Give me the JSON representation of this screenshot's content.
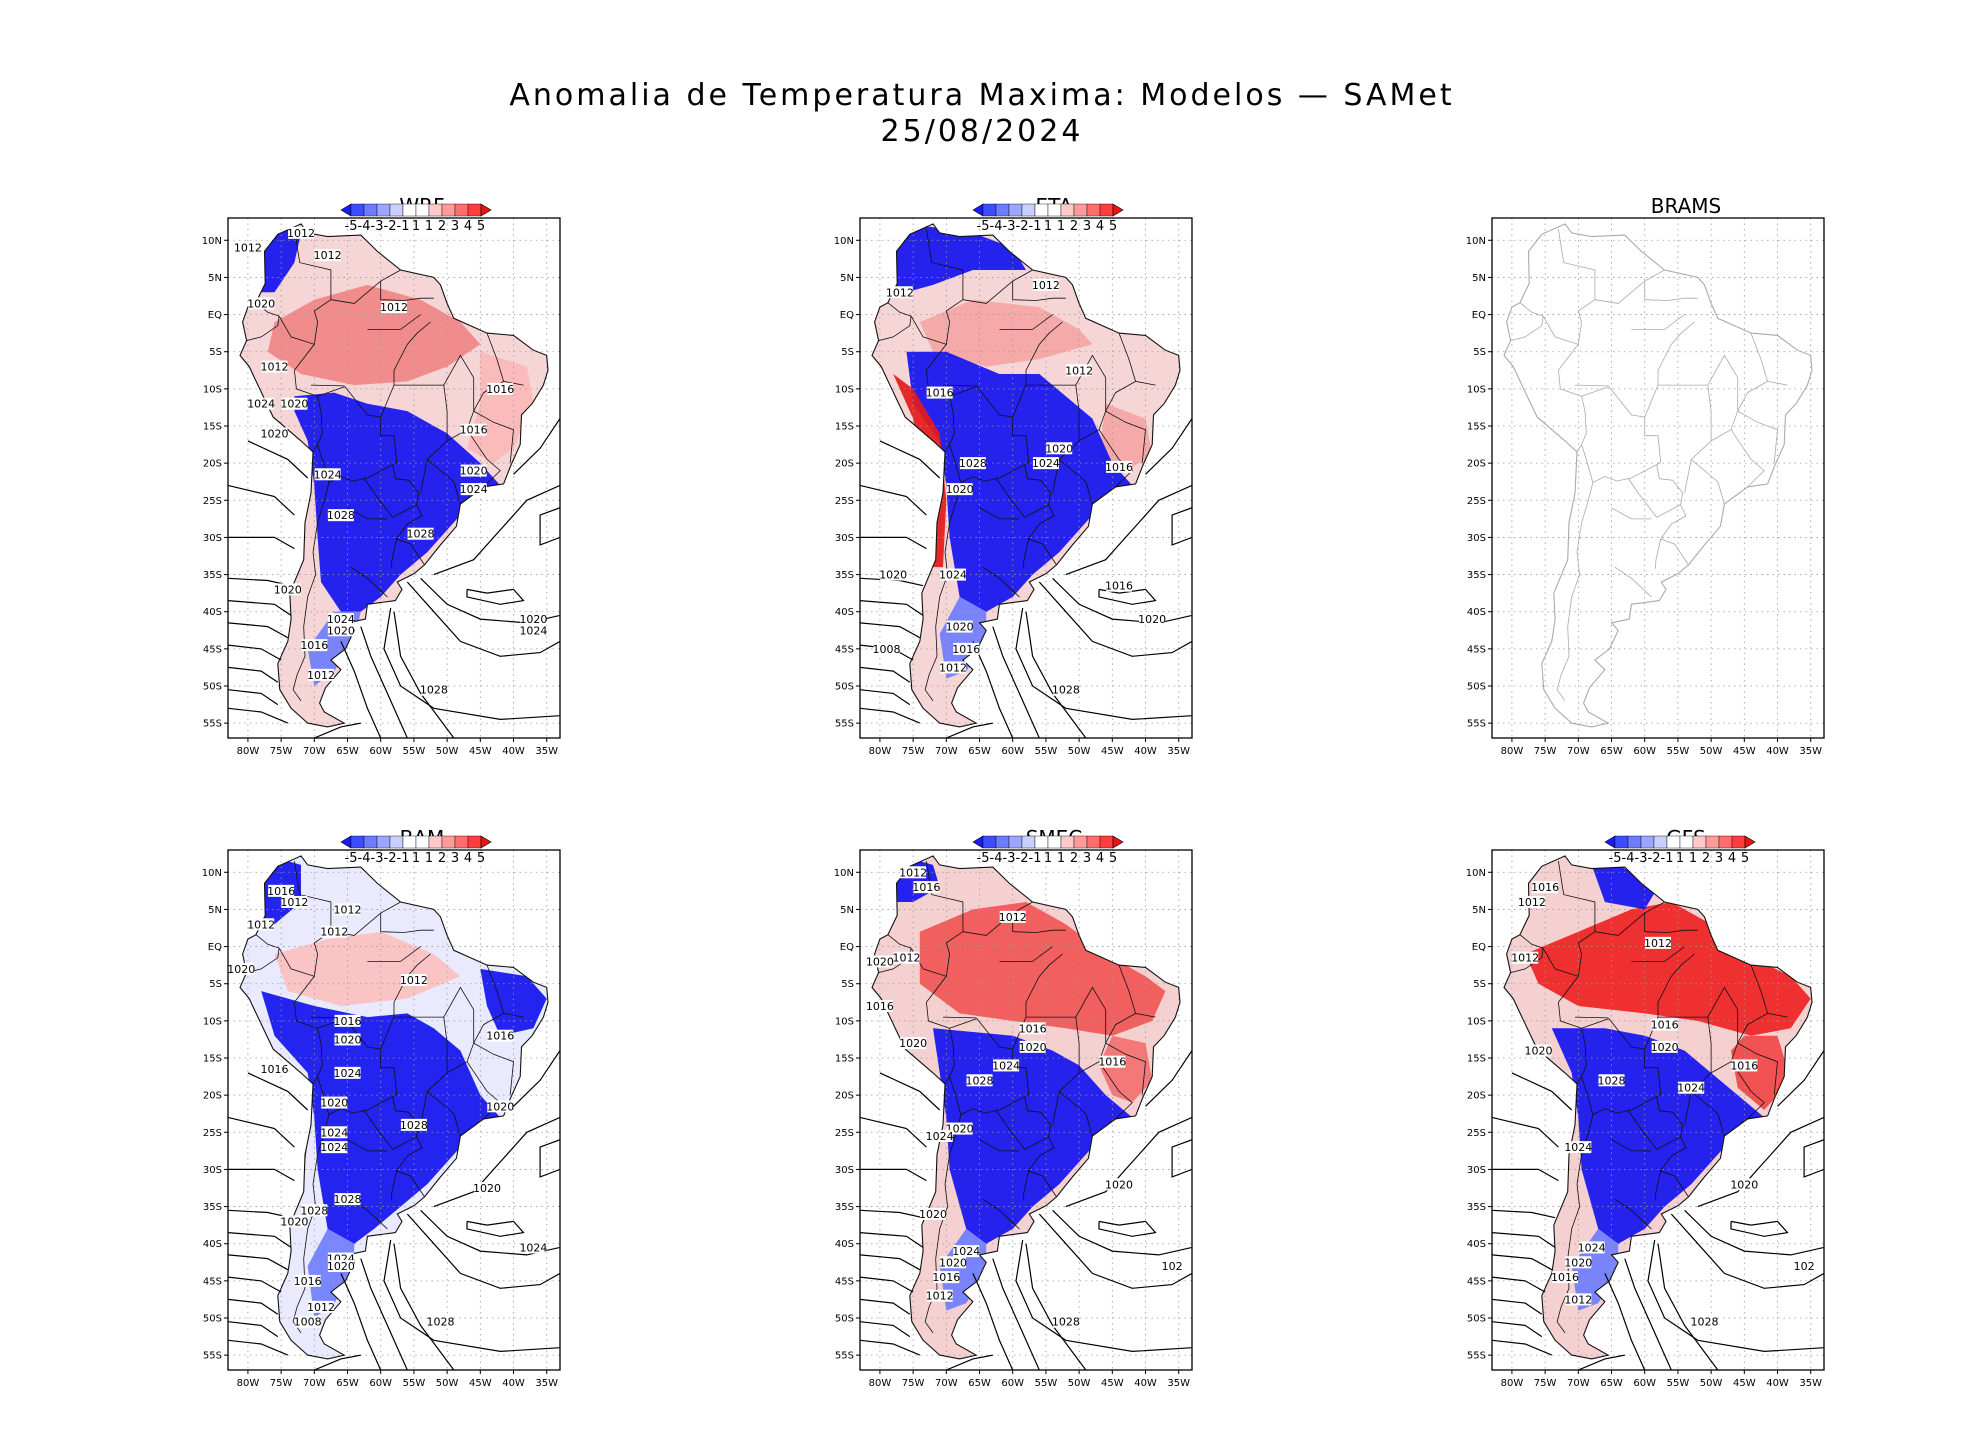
{
  "figure": {
    "title": "Anomalia de Temperatura Maxima: Modelos — SAMet",
    "date": "25/08/2024"
  },
  "axes": {
    "lat_labels": [
      "10N",
      "5N",
      "EQ",
      "5S",
      "10S",
      "15S",
      "20S",
      "25S",
      "30S",
      "35S",
      "40S",
      "45S",
      "50S",
      "55S"
    ],
    "lon_labels": [
      "80W",
      "75W",
      "70W",
      "65W",
      "60W",
      "55W",
      "50W",
      "45W",
      "40W",
      "35W"
    ]
  },
  "colorbar": {
    "labels": [
      "-5",
      "-4",
      "-3",
      "-2",
      "-1",
      "1",
      "1",
      "2",
      "3",
      "4",
      "5"
    ],
    "colors": [
      "#1a1aff",
      "#3d4dff",
      "#6e7dff",
      "#9aa6ff",
      "#c9d0ff",
      "#ffffff",
      "#ffffff",
      "#ffc9c9",
      "#ff9a9a",
      "#ff6e6e",
      "#ff3d3d",
      "#ee1111"
    ]
  },
  "panels": [
    {
      "model": "WRF",
      "has_data": true,
      "isobars": [
        {
          "label": "1012",
          "lon": -72,
          "lat": 11
        },
        {
          "label": "1012",
          "lon": -68,
          "lat": 8
        },
        {
          "label": "1012",
          "lon": -80,
          "lat": 9
        },
        {
          "label": "1020",
          "lon": -78,
          "lat": 1.5
        },
        {
          "label": "1012",
          "lon": -58,
          "lat": 1
        },
        {
          "label": "1012",
          "lon": -76,
          "lat": -7
        },
        {
          "label": "1024",
          "lon": -78,
          "lat": -12
        },
        {
          "label": "1020",
          "lon": -73,
          "lat": -12
        },
        {
          "label": "1020",
          "lon": -76,
          "lat": -16
        },
        {
          "label": "1016",
          "lon": -42,
          "lat": -10
        },
        {
          "label": "1016",
          "lon": -46,
          "lat": -15.5
        },
        {
          "label": "1024",
          "lon": -68,
          "lat": -21.5
        },
        {
          "label": "1020",
          "lon": -46,
          "lat": -21
        },
        {
          "label": "1024",
          "lon": -46,
          "lat": -23.5
        },
        {
          "label": "1028",
          "lon": -66,
          "lat": -27
        },
        {
          "label": "1028",
          "lon": -54,
          "lat": -29.5
        },
        {
          "label": "1020",
          "lon": -74,
          "lat": -37
        },
        {
          "label": "1024",
          "lon": -66,
          "lat": -41
        },
        {
          "label": "1020",
          "lon": -66,
          "lat": -42.5
        },
        {
          "label": "1016",
          "lon": -70,
          "lat": -44.5
        },
        {
          "label": "1012",
          "lon": -69,
          "lat": -48.5
        },
        {
          "label": "1020",
          "lon": -37,
          "lat": -41
        },
        {
          "label": "1024",
          "lon": -37,
          "lat": -42.5
        },
        {
          "label": "1028",
          "lon": -52,
          "lat": -50.5
        }
      ]
    },
    {
      "model": "ETA",
      "has_data": true,
      "isobars": [
        {
          "label": "1012",
          "lon": -77,
          "lat": 3
        },
        {
          "label": "1012",
          "lon": -55,
          "lat": 4
        },
        {
          "label": "1012",
          "lon": -50,
          "lat": -7.5
        },
        {
          "label": "1016",
          "lon": -71,
          "lat": -10.5
        },
        {
          "label": "1020",
          "lon": -53,
          "lat": -18
        },
        {
          "label": "1024",
          "lon": -55,
          "lat": -20
        },
        {
          "label": "1028",
          "lon": -66,
          "lat": -20
        },
        {
          "label": "1016",
          "lon": -44,
          "lat": -20.5
        },
        {
          "label": "1020",
          "lon": -68,
          "lat": -23.5
        },
        {
          "label": "1020",
          "lon": -78,
          "lat": -35
        },
        {
          "label": "1024",
          "lon": -69,
          "lat": -35
        },
        {
          "label": "1016",
          "lon": -44,
          "lat": -36.5
        },
        {
          "label": "1020",
          "lon": -39,
          "lat": -41
        },
        {
          "label": "1020",
          "lon": -68,
          "lat": -42
        },
        {
          "label": "1016",
          "lon": -67,
          "lat": -45
        },
        {
          "label": "1008",
          "lon": -79,
          "lat": -45
        },
        {
          "label": "1012",
          "lon": -69,
          "lat": -47.5
        },
        {
          "label": "1028",
          "lon": -52,
          "lat": -50.5
        }
      ]
    },
    {
      "model": "BRAMS",
      "has_data": false,
      "isobars": []
    },
    {
      "model": "BAM",
      "has_data": true,
      "isobars": [
        {
          "label": "1016",
          "lon": -75,
          "lat": 7.5
        },
        {
          "label": "1012",
          "lon": -73,
          "lat": 6
        },
        {
          "label": "1012",
          "lon": -65,
          "lat": 5
        },
        {
          "label": "1012",
          "lon": -78,
          "lat": 3
        },
        {
          "label": "1012",
          "lon": -67,
          "lat": 2
        },
        {
          "label": "1020",
          "lon": -81,
          "lat": -3
        },
        {
          "label": "1012",
          "lon": -55,
          "lat": -4.5
        },
        {
          "label": "1016",
          "lon": -65,
          "lat": -10
        },
        {
          "label": "1020",
          "lon": -65,
          "lat": -12.5
        },
        {
          "label": "1016",
          "lon": -42,
          "lat": -12
        },
        {
          "label": "1016",
          "lon": -76,
          "lat": -16.5
        },
        {
          "label": "1024",
          "lon": -65,
          "lat": -17
        },
        {
          "label": "1020",
          "lon": -67,
          "lat": -21
        },
        {
          "label": "1020",
          "lon": -42,
          "lat": -21.5
        },
        {
          "label": "1028",
          "lon": -55,
          "lat": -24
        },
        {
          "label": "1024",
          "lon": -67,
          "lat": -25
        },
        {
          "label": "1024",
          "lon": -67,
          "lat": -27
        },
        {
          "label": "1028",
          "lon": -65,
          "lat": -34
        },
        {
          "label": "1020",
          "lon": -44,
          "lat": -32.5
        },
        {
          "label": "1028",
          "lon": -70,
          "lat": -35.5
        },
        {
          "label": "1020",
          "lon": -73,
          "lat": -37
        },
        {
          "label": "1024",
          "lon": -66,
          "lat": -42
        },
        {
          "label": "1020",
          "lon": -66,
          "lat": -43
        },
        {
          "label": "1016",
          "lon": -71,
          "lat": -45
        },
        {
          "label": "1024",
          "lon": -37,
          "lat": -40.5
        },
        {
          "label": "1012",
          "lon": -69,
          "lat": -48.5
        },
        {
          "label": "1008",
          "lon": -71,
          "lat": -50.5
        },
        {
          "label": "1028",
          "lon": -51,
          "lat": -50.5
        }
      ]
    },
    {
      "model": "SMEC",
      "has_data": true,
      "isobars": [
        {
          "label": "1012",
          "lon": -75,
          "lat": 10
        },
        {
          "label": "1016",
          "lon": -73,
          "lat": 8
        },
        {
          "label": "1012",
          "lon": -60,
          "lat": 4
        },
        {
          "label": "1020",
          "lon": -80,
          "lat": -2
        },
        {
          "label": "1012",
          "lon": -76,
          "lat": -1.5
        },
        {
          "label": "1016",
          "lon": -80,
          "lat": -8
        },
        {
          "label": "1016",
          "lon": -57,
          "lat": -11
        },
        {
          "label": "1020",
          "lon": -75,
          "lat": -13
        },
        {
          "label": "1020",
          "lon": -57,
          "lat": -13.5
        },
        {
          "label": "1016",
          "lon": -45,
          "lat": -15.5
        },
        {
          "label": "1024",
          "lon": -61,
          "lat": -16
        },
        {
          "label": "1028",
          "lon": -65,
          "lat": -18
        },
        {
          "label": "1020",
          "lon": -68,
          "lat": -24.5
        },
        {
          "label": "1024",
          "lon": -71,
          "lat": -25.5
        },
        {
          "label": "1020",
          "lon": -44,
          "lat": -32
        },
        {
          "label": "1020",
          "lon": -72,
          "lat": -36
        },
        {
          "label": "1024",
          "lon": -67,
          "lat": -41
        },
        {
          "label": "1020",
          "lon": -69,
          "lat": -42.5
        },
        {
          "label": "1016",
          "lon": -70,
          "lat": -44.5
        },
        {
          "label": "1012",
          "lon": -71,
          "lat": -47
        },
        {
          "label": "1028",
          "lon": -52,
          "lat": -50.5
        },
        {
          "label": "102",
          "lon": -36,
          "lat": -43
        }
      ]
    },
    {
      "model": "GFS",
      "has_data": true,
      "isobars": [
        {
          "label": "1016",
          "lon": -75,
          "lat": 8
        },
        {
          "label": "1012",
          "lon": -77,
          "lat": 6
        },
        {
          "label": "1012",
          "lon": -78,
          "lat": -1.5
        },
        {
          "label": "1012",
          "lon": -58,
          "lat": 0.5
        },
        {
          "label": "1016",
          "lon": -57,
          "lat": -10.5
        },
        {
          "label": "1020",
          "lon": -76,
          "lat": -14
        },
        {
          "label": "1020",
          "lon": -57,
          "lat": -13.5
        },
        {
          "label": "1016",
          "lon": -45,
          "lat": -16
        },
        {
          "label": "1028",
          "lon": -65,
          "lat": -18
        },
        {
          "label": "1024",
          "lon": -53,
          "lat": -19
        },
        {
          "label": "1024",
          "lon": -70,
          "lat": -27
        },
        {
          "label": "1020",
          "lon": -45,
          "lat": -32
        },
        {
          "label": "1024",
          "lon": -68,
          "lat": -40.5
        },
        {
          "label": "1020",
          "lon": -70,
          "lat": -42.5
        },
        {
          "label": "1016",
          "lon": -72,
          "lat": -44.5
        },
        {
          "label": "1012",
          "lon": -70,
          "lat": -47.5
        },
        {
          "label": "1028",
          "lon": -51,
          "lat": -50.5
        },
        {
          "label": "102",
          "lon": -36,
          "lat": -43
        }
      ]
    }
  ]
}
